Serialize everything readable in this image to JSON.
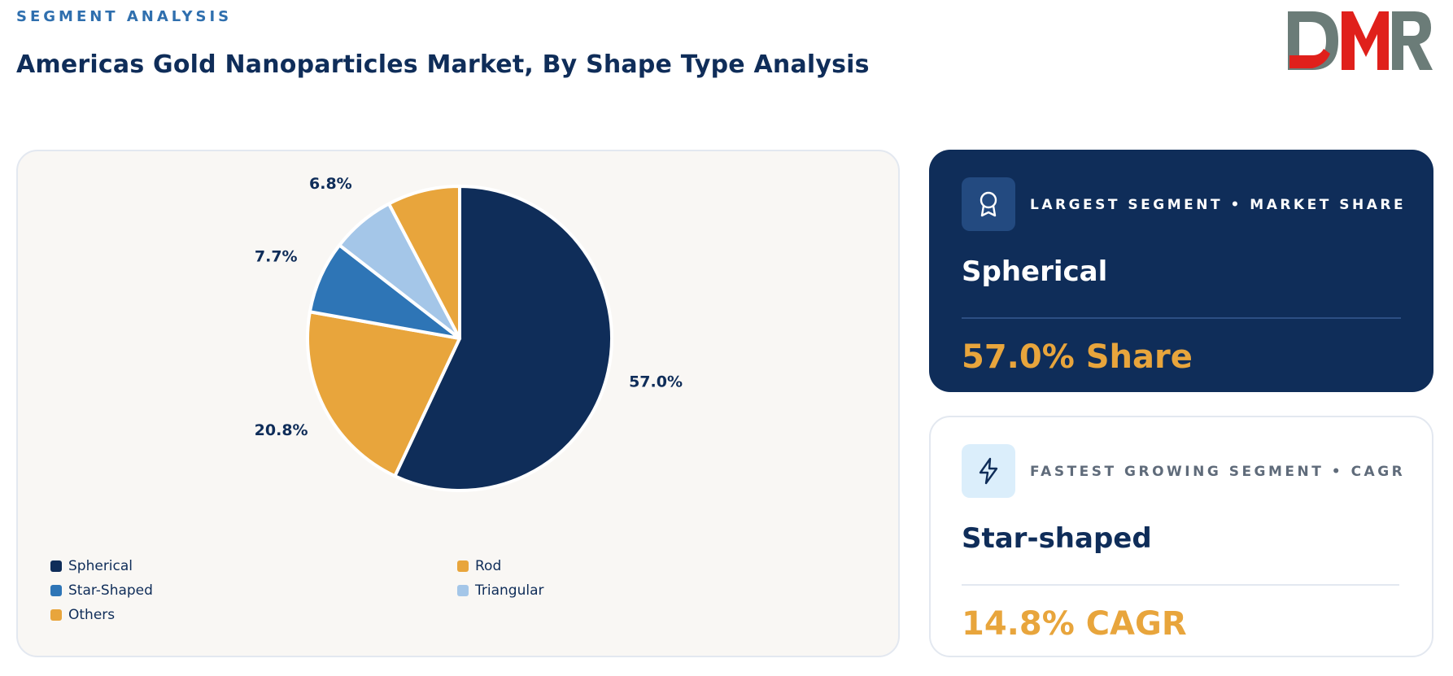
{
  "header": {
    "eyebrow": "SEGMENT ANALYSIS",
    "title": "Americas Gold Nanoparticles Market, By Shape Type Analysis",
    "logo_text": "DMR"
  },
  "chart_data": {
    "type": "pie",
    "categories": [
      "Spherical",
      "Rod",
      "Star-Shaped",
      "Triangular",
      "Others"
    ],
    "values": [
      57.0,
      20.8,
      7.7,
      6.8,
      7.7
    ],
    "labels": [
      "57.0%",
      "20.8%",
      "7.7%",
      "6.8%",
      "7.7%"
    ],
    "colors": [
      "#0f2d59",
      "#e8a53c",
      "#2e75b6",
      "#a4c6e8",
      "#e8a53c"
    ],
    "legend": [
      {
        "label": "Spherical",
        "color": "#0f2d59"
      },
      {
        "label": "Rod",
        "color": "#e8a53c"
      },
      {
        "label": "Star-Shaped",
        "color": "#2e75b6"
      },
      {
        "label": "Triangular",
        "color": "#a4c6e8"
      },
      {
        "label": "Others",
        "color": "#e8a53c"
      }
    ],
    "legend_position": "bottom-left"
  },
  "largest": {
    "label": "LARGEST SEGMENT • MARKET SHARE",
    "name": "Spherical",
    "value": "57.0% Share",
    "icon": "award-icon"
  },
  "fastest": {
    "label": "FASTEST GROWING SEGMENT • CAGR",
    "name": "Star-shaped",
    "value": "14.8% CAGR",
    "icon": "lightning-icon"
  },
  "colors": {
    "navy": "#0f2d59",
    "gold": "#e8a53c",
    "blue": "#2e75b6",
    "light_blue": "#a4c6e8",
    "logo_gray": "#6b7c78",
    "logo_red": "#e0201b"
  }
}
